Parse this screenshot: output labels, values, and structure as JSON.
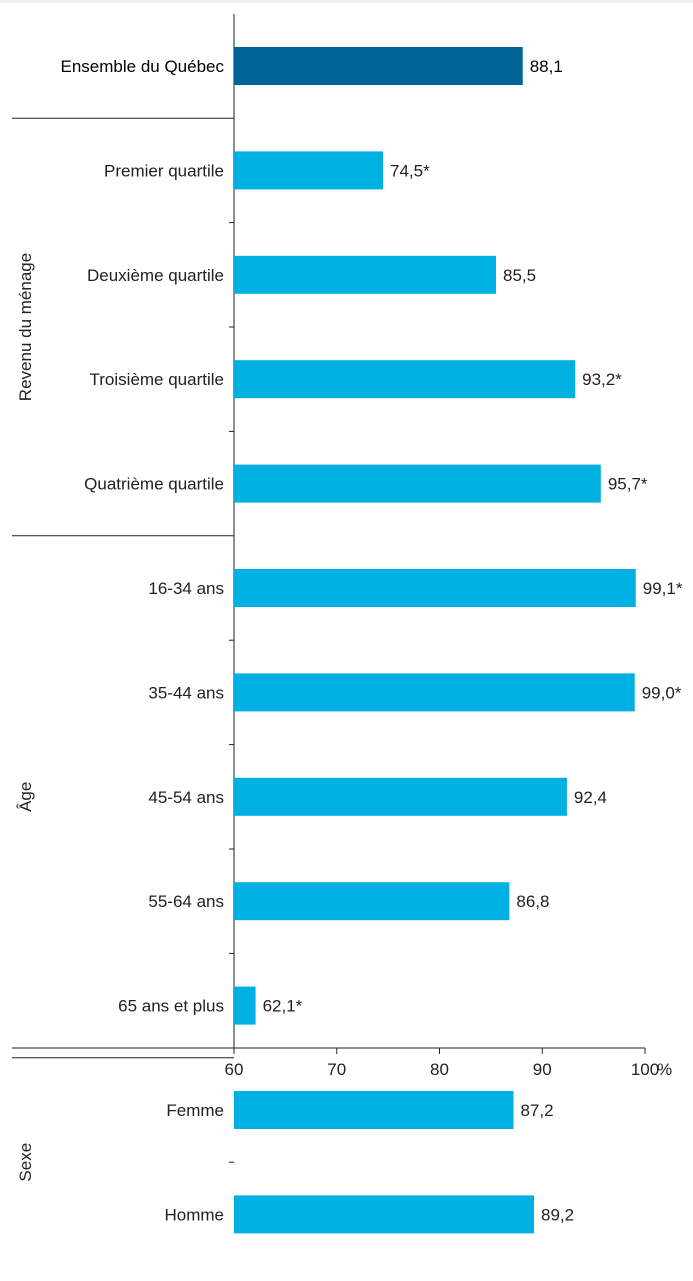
{
  "chart_data": {
    "type": "bar",
    "orientation": "horizontal",
    "xlim": [
      60,
      100
    ],
    "ticks": [
      "60",
      "70",
      "80",
      "90",
      "100"
    ],
    "unit": "%",
    "colors": {
      "highlight": "#006296",
      "default": "#00b0e2"
    },
    "categories": [
      {
        "label": "Ensemble du Québec",
        "value": 88.1,
        "value_label": "88,1",
        "group": "",
        "highlight": true
      },
      {
        "label": "Premier quartile",
        "value": 74.5,
        "value_label": "74,5*",
        "group": "Revenu du ménage",
        "highlight": false
      },
      {
        "label": "Deuxième quartile",
        "value": 85.5,
        "value_label": "85,5",
        "group": "Revenu du ménage",
        "highlight": false
      },
      {
        "label": "Troisième quartile",
        "value": 93.2,
        "value_label": "93,2*",
        "group": "Revenu du ménage",
        "highlight": false
      },
      {
        "label": "Quatrième quartile",
        "value": 95.7,
        "value_label": "95,7*",
        "group": "Revenu du ménage",
        "highlight": false
      },
      {
        "label": "16-34 ans",
        "value": 99.1,
        "value_label": "99,1*",
        "group": "Âge",
        "highlight": false
      },
      {
        "label": "35-44 ans",
        "value": 99.0,
        "value_label": "99,0*",
        "group": "Âge",
        "highlight": false
      },
      {
        "label": "45-54 ans",
        "value": 92.4,
        "value_label": "92,4",
        "group": "Âge",
        "highlight": false
      },
      {
        "label": "55-64 ans",
        "value": 86.8,
        "value_label": "86,8",
        "group": "Âge",
        "highlight": false
      },
      {
        "label": "65 ans et plus",
        "value": 62.1,
        "value_label": "62,1*",
        "group": "Âge",
        "highlight": false
      },
      {
        "label": "Femme",
        "value": 87.2,
        "value_label": "87,2",
        "group": "Sexe",
        "highlight": false
      },
      {
        "label": "Homme",
        "value": 89.2,
        "value_label": "89,2",
        "group": "Sexe",
        "highlight": false
      }
    ],
    "groups": [
      "Revenu du ménage",
      "Âge",
      "Sexe"
    ]
  }
}
